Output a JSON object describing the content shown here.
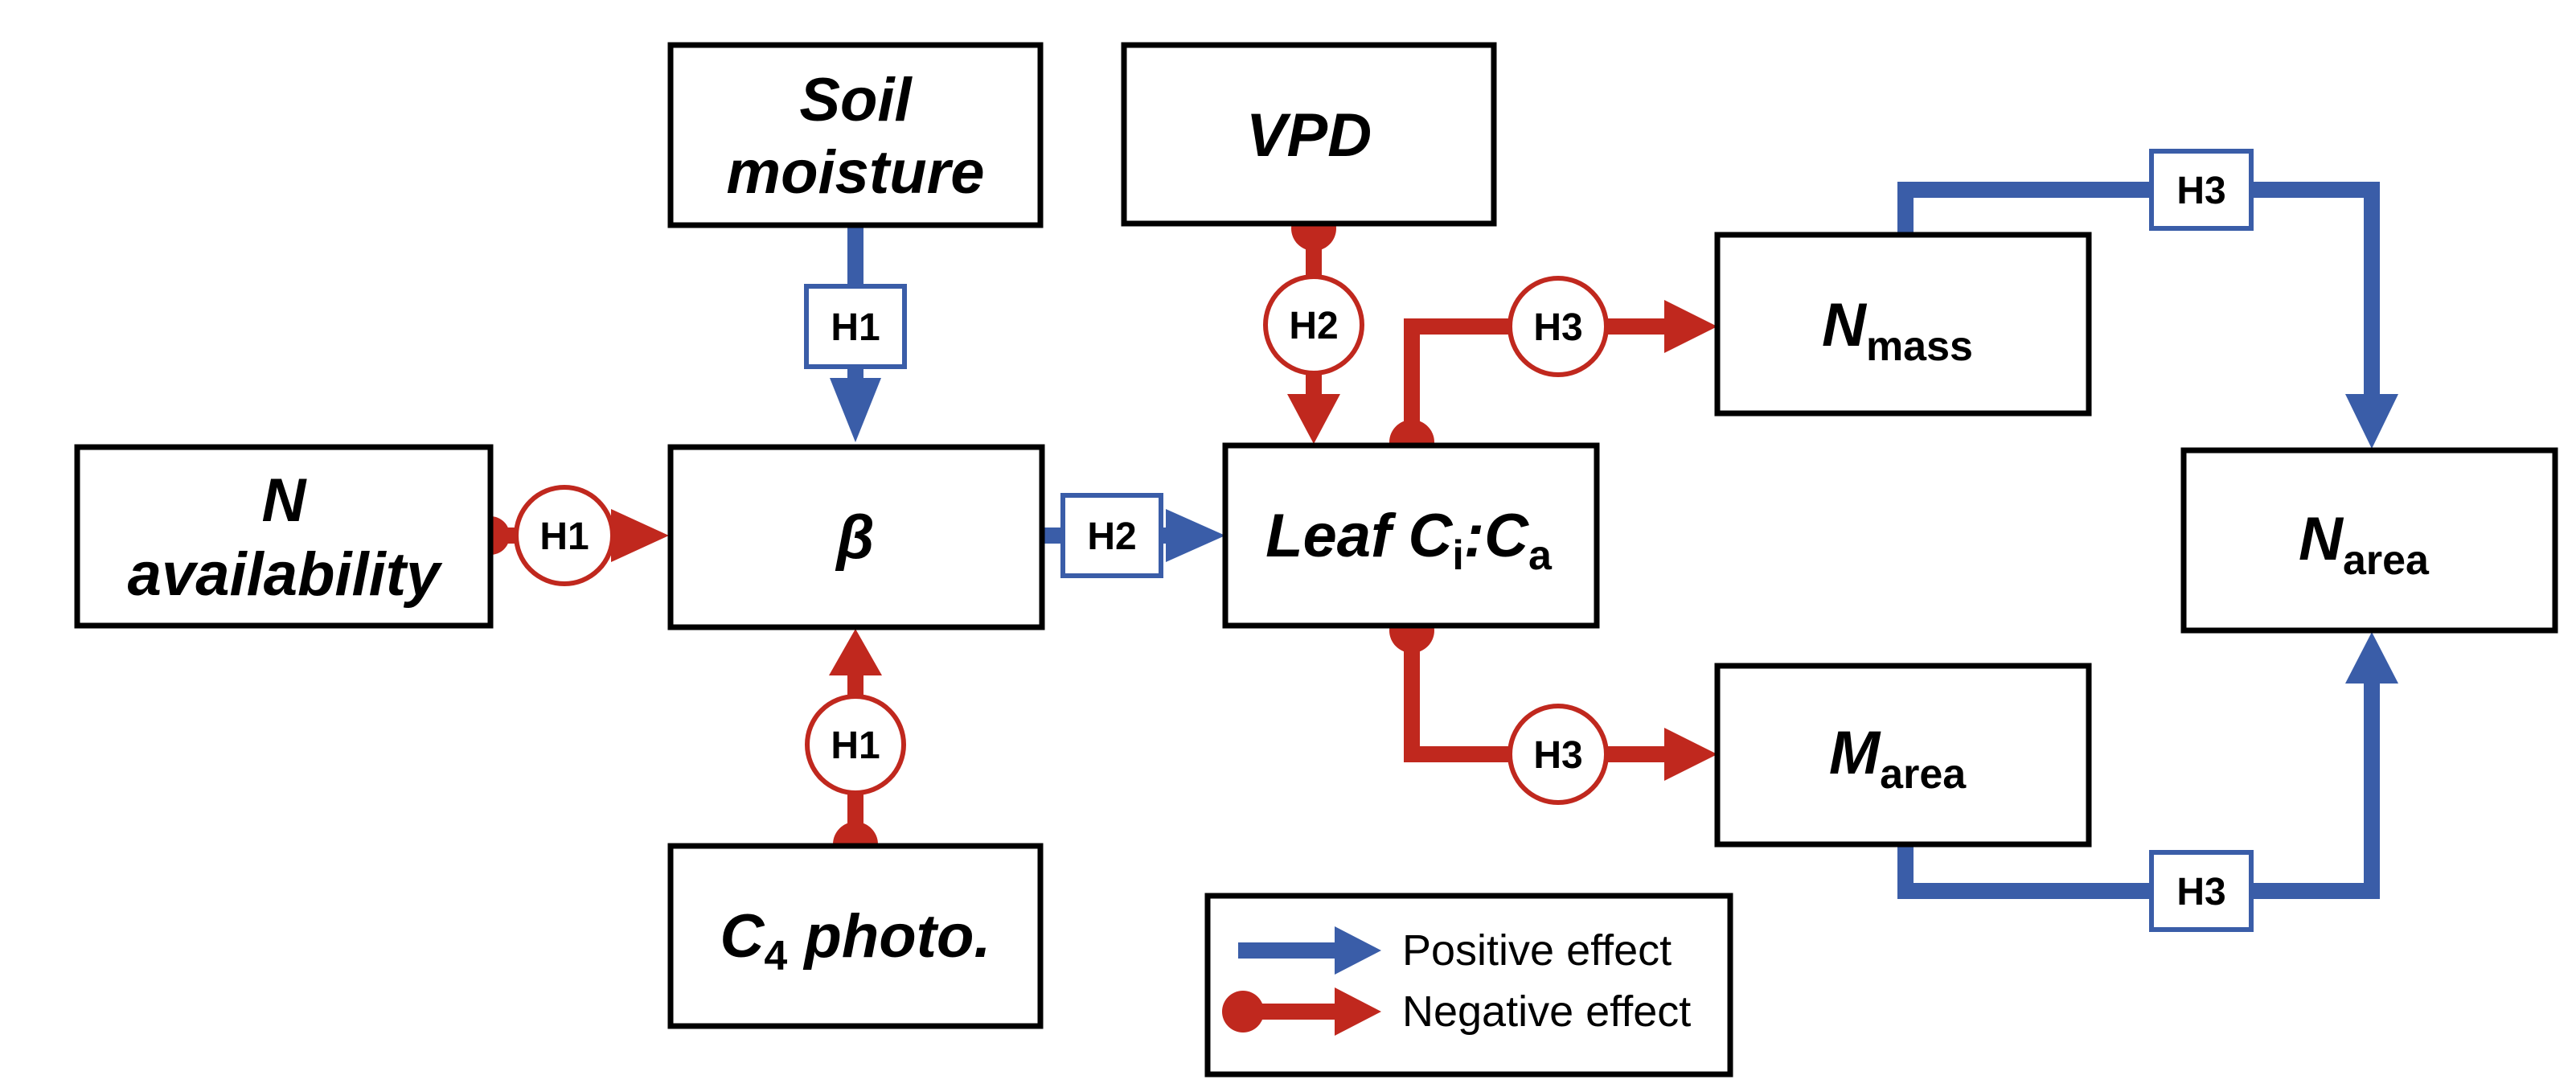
{
  "colors": {
    "positive": "#3a5da8",
    "negative": "#c0281e",
    "box_border": "#000000",
    "background": "#ffffff"
  },
  "nodes": {
    "soil_moisture": {
      "line1": "Soil",
      "line2": "moisture"
    },
    "vpd": {
      "label": "VPD"
    },
    "n_availability": {
      "line1": "N",
      "line2": "availability"
    },
    "beta": {
      "label": "β"
    },
    "c4_photo": {
      "main": "C",
      "sub": "4",
      "rest": " photo."
    },
    "leaf_ci_ca": {
      "main": "Leaf C",
      "sub1": "i",
      "mid": ":C",
      "sub2": "a"
    },
    "n_mass": {
      "main": "N",
      "sub": "mass"
    },
    "m_area": {
      "main": "M",
      "sub": "area"
    },
    "n_area": {
      "main": "N",
      "sub": "area"
    }
  },
  "hypotheses": {
    "soil_to_beta": "H1",
    "navail_to_beta": "H1",
    "c4_to_beta": "H1",
    "beta_to_leaf": "H2",
    "vpd_to_leaf": "H2",
    "leaf_to_nmass": "H3",
    "leaf_to_marea": "H3",
    "nmass_to_narea": "H3",
    "marea_to_narea": "H3"
  },
  "edges": [
    {
      "from": "soil_moisture",
      "to": "beta",
      "effect": "positive",
      "hypothesis": "H1"
    },
    {
      "from": "n_availability",
      "to": "beta",
      "effect": "negative",
      "hypothesis": "H1"
    },
    {
      "from": "c4_photo",
      "to": "beta",
      "effect": "negative",
      "hypothesis": "H1"
    },
    {
      "from": "beta",
      "to": "leaf_ci_ca",
      "effect": "positive",
      "hypothesis": "H2"
    },
    {
      "from": "vpd",
      "to": "leaf_ci_ca",
      "effect": "negative",
      "hypothesis": "H2"
    },
    {
      "from": "leaf_ci_ca",
      "to": "n_mass",
      "effect": "negative",
      "hypothesis": "H3"
    },
    {
      "from": "leaf_ci_ca",
      "to": "m_area",
      "effect": "negative",
      "hypothesis": "H3"
    },
    {
      "from": "n_mass",
      "to": "n_area",
      "effect": "positive",
      "hypothesis": "H3"
    },
    {
      "from": "m_area",
      "to": "n_area",
      "effect": "positive",
      "hypothesis": "H3"
    }
  ],
  "legend": {
    "positive_label": "Positive effect",
    "negative_label": "Negative effect"
  }
}
